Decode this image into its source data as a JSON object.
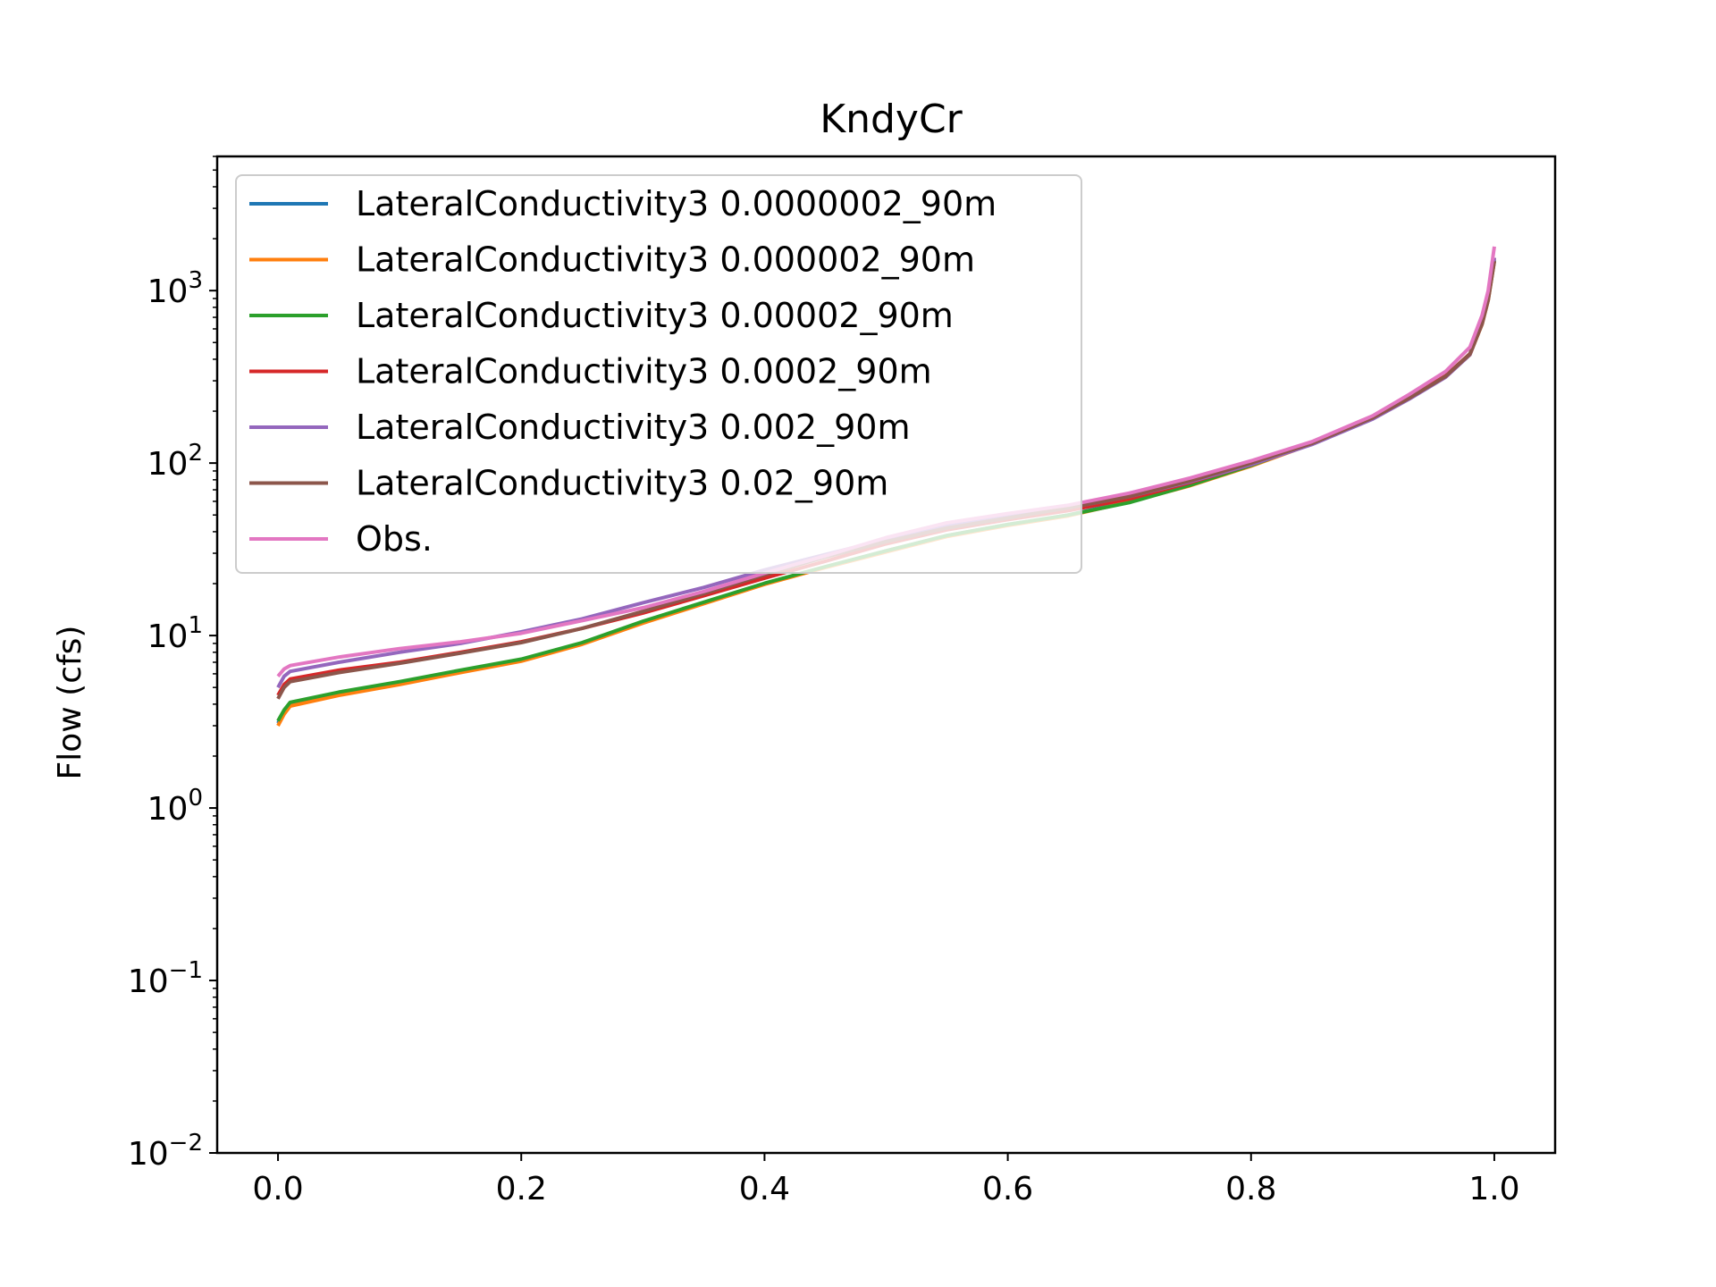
{
  "chart_data": {
    "type": "line",
    "title": "KndyCr",
    "xlabel": "",
    "ylabel": "Flow (cfs)",
    "xlim": [
      -0.05,
      1.05
    ],
    "ylim": [
      0.01,
      6000
    ],
    "yscale": "log",
    "x_ticks": [
      {
        "value": 0.0,
        "label": "0.0"
      },
      {
        "value": 0.2,
        "label": "0.2"
      },
      {
        "value": 0.4,
        "label": "0.4"
      },
      {
        "value": 0.6,
        "label": "0.6"
      },
      {
        "value": 0.8,
        "label": "0.8"
      },
      {
        "value": 1.0,
        "label": "1.0"
      }
    ],
    "y_ticks": [
      {
        "value": 0.01,
        "base": "10",
        "exp": "−2"
      },
      {
        "value": 0.1,
        "base": "10",
        "exp": "−1"
      },
      {
        "value": 1,
        "base": "10",
        "exp": "0"
      },
      {
        "value": 10,
        "base": "10",
        "exp": "1"
      },
      {
        "value": 100,
        "base": "10",
        "exp": "2"
      },
      {
        "value": 1000,
        "base": "10",
        "exp": "3"
      }
    ],
    "grid": false,
    "legend_position": "upper-left",
    "series": [
      {
        "name": "LateralConductivity3 0.0000002_90m",
        "color": "#1f77b4",
        "x": [
          0,
          0.005,
          0.01,
          0.05,
          0.1,
          0.15,
          0.2,
          0.25,
          0.3,
          0.35,
          0.4,
          0.45,
          0.5,
          0.55,
          0.6,
          0.65,
          0.7,
          0.75,
          0.8,
          0.85,
          0.9,
          0.93,
          0.96,
          0.98,
          0.99,
          0.995,
          1.0
        ],
        "y": [
          3.1,
          3.6,
          4.0,
          4.6,
          5.3,
          6.2,
          7.2,
          9.0,
          12.0,
          15.5,
          20.0,
          25.0,
          31.0,
          38.0,
          44.0,
          50.0,
          60.0,
          75.0,
          97.0,
          130.0,
          185.0,
          240.0,
          320.0,
          430.0,
          650.0,
          900.0,
          1500.0
        ]
      },
      {
        "name": "LateralConductivity3 0.000002_90m",
        "color": "#ff7f0e",
        "x": [
          0,
          0.005,
          0.01,
          0.05,
          0.1,
          0.15,
          0.2,
          0.25,
          0.3,
          0.35,
          0.4,
          0.45,
          0.5,
          0.55,
          0.6,
          0.65,
          0.7,
          0.75,
          0.8,
          0.85,
          0.9,
          0.93,
          0.96,
          0.98,
          0.99,
          0.995,
          1.0
        ],
        "y": [
          3.0,
          3.5,
          3.9,
          4.5,
          5.2,
          6.1,
          7.1,
          8.9,
          11.8,
          15.3,
          19.8,
          24.8,
          30.5,
          37.5,
          43.5,
          49.5,
          59.5,
          74.0,
          96.0,
          129.0,
          184.0,
          238.0,
          318.0,
          425.0,
          640.0,
          880.0,
          1480.0
        ]
      },
      {
        "name": "LateralConductivity3 0.00002_90m",
        "color": "#2ca02c",
        "x": [
          0,
          0.005,
          0.01,
          0.05,
          0.1,
          0.15,
          0.2,
          0.25,
          0.3,
          0.35,
          0.4,
          0.45,
          0.5,
          0.55,
          0.6,
          0.65,
          0.7,
          0.75,
          0.8,
          0.85,
          0.9,
          0.93,
          0.96,
          0.98,
          0.99,
          0.995,
          1.0
        ],
        "y": [
          3.2,
          3.7,
          4.1,
          4.7,
          5.4,
          6.3,
          7.3,
          9.1,
          12.1,
          15.6,
          20.1,
          25.1,
          31.0,
          38.0,
          44.0,
          50.0,
          59.0,
          74.5,
          97.0,
          130.0,
          185.0,
          240.0,
          320.0,
          430.0,
          650.0,
          900.0,
          1500.0
        ]
      },
      {
        "name": "LateralConductivity3 0.0002_90m",
        "color": "#d62728",
        "x": [
          0,
          0.005,
          0.01,
          0.05,
          0.1,
          0.15,
          0.2,
          0.25,
          0.3,
          0.35,
          0.4,
          0.45,
          0.5,
          0.55,
          0.6,
          0.65,
          0.7,
          0.75,
          0.8,
          0.85,
          0.9,
          0.93,
          0.96,
          0.98,
          0.99,
          0.995,
          1.0
        ],
        "y": [
          4.5,
          5.2,
          5.6,
          6.3,
          7.0,
          8.0,
          9.2,
          11.0,
          13.5,
          17.0,
          21.5,
          27.0,
          34.0,
          41.0,
          47.0,
          53.0,
          62.0,
          77.0,
          98.0,
          130.0,
          185.0,
          240.0,
          320.0,
          430.0,
          660.0,
          920.0,
          1550.0
        ]
      },
      {
        "name": "LateralConductivity3 0.002_90m",
        "color": "#9467bd",
        "x": [
          0,
          0.005,
          0.01,
          0.05,
          0.1,
          0.15,
          0.2,
          0.25,
          0.3,
          0.35,
          0.4,
          0.45,
          0.5,
          0.55,
          0.6,
          0.65,
          0.7,
          0.75,
          0.8,
          0.85,
          0.9,
          0.93,
          0.96,
          0.98,
          0.99,
          0.995,
          1.0
        ],
        "y": [
          5.0,
          5.8,
          6.2,
          7.0,
          8.0,
          9.0,
          10.5,
          12.5,
          15.5,
          19.0,
          24.0,
          29.5,
          36.0,
          43.0,
          49.0,
          55.0,
          64.0,
          78.0,
          98.0,
          128.0,
          180.0,
          235.0,
          315.0,
          425.0,
          650.0,
          910.0,
          1550.0
        ]
      },
      {
        "name": "LateralConductivity3 0.02_90m",
        "color": "#8c564b",
        "x": [
          0,
          0.005,
          0.01,
          0.05,
          0.1,
          0.15,
          0.2,
          0.25,
          0.3,
          0.35,
          0.4,
          0.45,
          0.5,
          0.55,
          0.6,
          0.65,
          0.7,
          0.75,
          0.8,
          0.85,
          0.9,
          0.93,
          0.96,
          0.98,
          0.99,
          0.995,
          1.0
        ],
        "y": [
          4.3,
          5.0,
          5.4,
          6.1,
          6.9,
          7.9,
          9.1,
          11.0,
          13.8,
          17.5,
          22.5,
          28.5,
          35.0,
          42.0,
          48.0,
          55.0,
          64.0,
          79.0,
          100.0,
          130.0,
          183.0,
          238.0,
          318.0,
          428.0,
          640.0,
          880.0,
          1480.0
        ]
      },
      {
        "name": "Obs.",
        "color": "#e377c2",
        "x": [
          0,
          0.005,
          0.01,
          0.05,
          0.1,
          0.15,
          0.2,
          0.25,
          0.3,
          0.35,
          0.4,
          0.45,
          0.5,
          0.55,
          0.6,
          0.65,
          0.7,
          0.75,
          0.8,
          0.85,
          0.9,
          0.93,
          0.96,
          0.98,
          0.99,
          0.995,
          1.0
        ],
        "y": [
          5.8,
          6.4,
          6.7,
          7.5,
          8.4,
          9.2,
          10.3,
          12.2,
          14.5,
          18.0,
          23.0,
          29.0,
          37.0,
          45.0,
          51.0,
          57.0,
          67.0,
          82.0,
          103.0,
          133.0,
          188.0,
          250.0,
          340.0,
          470.0,
          720.0,
          1000.0,
          1800.0
        ]
      }
    ]
  }
}
